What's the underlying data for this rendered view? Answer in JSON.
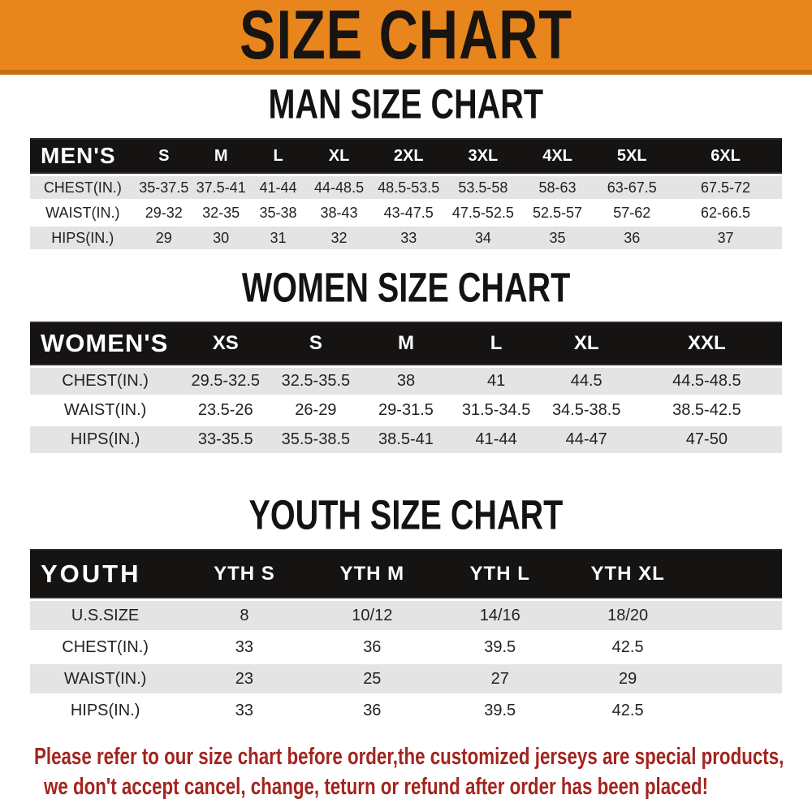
{
  "banner": {
    "title": "SIZE CHART"
  },
  "colors": {
    "banner_orange": "#E8851C",
    "banner_edge": "#C66E12",
    "header_black": "#161313",
    "row_gray": "#E5E4E4",
    "note_red": "#A3241F"
  },
  "chart_data": [
    {
      "type": "table",
      "title": "MAN SIZE CHART",
      "header_label": "MEN'S",
      "columns": [
        "S",
        "M",
        "L",
        "XL",
        "2XL",
        "3XL",
        "4XL",
        "5XL",
        "6XL"
      ],
      "rows": [
        {
          "label": "CHEST(IN.)",
          "values": [
            "35-37.5",
            "37.5-41",
            "41-44",
            "44-48.5",
            "48.5-53.5",
            "53.5-58",
            "58-63",
            "63-67.5",
            "67.5-72"
          ]
        },
        {
          "label": "WAIST(IN.)",
          "values": [
            "29-32",
            "32-35",
            "35-38",
            "38-43",
            "43-47.5",
            "47.5-52.5",
            "52.5-57",
            "57-62",
            "62-66.5"
          ]
        },
        {
          "label": "HIPS(IN.)",
          "values": [
            "29",
            "30",
            "31",
            "32",
            "33",
            "34",
            "35",
            "36",
            "37"
          ]
        }
      ]
    },
    {
      "type": "table",
      "title": "WOMEN SIZE CHART",
      "header_label": "WOMEN'S",
      "columns": [
        "XS",
        "S",
        "M",
        "L",
        "XL",
        "XXL"
      ],
      "rows": [
        {
          "label": "CHEST(IN.)",
          "values": [
            "29.5-32.5",
            "32.5-35.5",
            "38",
            "41",
            "44.5",
            "44.5-48.5"
          ]
        },
        {
          "label": "WAIST(IN.)",
          "values": [
            "23.5-26",
            "26-29",
            "29-31.5",
            "31.5-34.5",
            "34.5-38.5",
            "38.5-42.5"
          ]
        },
        {
          "label": "HIPS(IN.)",
          "values": [
            "33-35.5",
            "35.5-38.5",
            "38.5-41",
            "41-44",
            "44-47",
            "47-50"
          ]
        }
      ]
    },
    {
      "type": "table",
      "title": "YOUTH SIZE CHART",
      "header_label": "YOUTH",
      "columns": [
        "YTH S",
        "YTH M",
        "YTH L",
        "YTH XL"
      ],
      "rows": [
        {
          "label": "U.S.SIZE",
          "values": [
            "8",
            "10/12",
            "14/16",
            "18/20"
          ]
        },
        {
          "label": "CHEST(IN.)",
          "values": [
            "33",
            "36",
            "39.5",
            "42.5"
          ]
        },
        {
          "label": "WAIST(IN.)",
          "values": [
            "23",
            "25",
            "27",
            "29"
          ]
        },
        {
          "label": "HIPS(IN.)",
          "values": [
            "33",
            "36",
            "39.5",
            "42.5"
          ]
        }
      ]
    }
  ],
  "footer": {
    "line1": "Please refer to our size chart before order,the customized jerseys are special products,",
    "line2": "we don't accept cancel, change, teturn or refund after order has been placed!"
  }
}
